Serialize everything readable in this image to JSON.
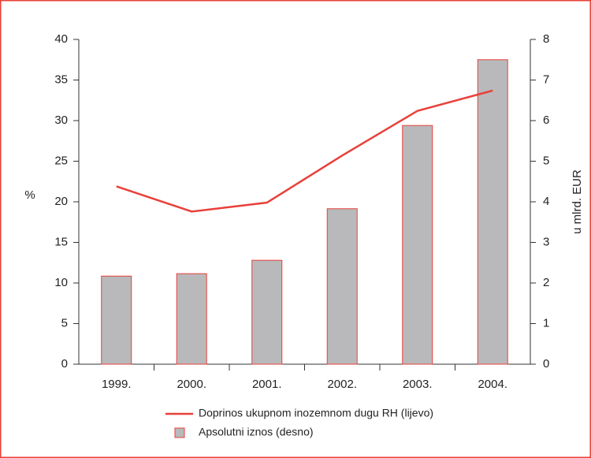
{
  "chart_data": {
    "type": "bar",
    "categories": [
      "1999.",
      "2000.",
      "2001.",
      "2002.",
      "2003.",
      "2004."
    ],
    "y_label": "%",
    "y2_label": "u mlrd. EUR",
    "ylim": [
      0,
      40
    ],
    "yticks": [
      0,
      5,
      10,
      15,
      20,
      25,
      30,
      35,
      40
    ],
    "y2lim": [
      0,
      8
    ],
    "y2ticks": [
      0,
      1,
      2,
      3,
      4,
      5,
      6,
      7,
      8
    ],
    "series": [
      {
        "name": "Doprinos ukupnom inozemnom dugu RH (lijevo)",
        "type": "line",
        "color": "#e8413a",
        "axis": "y",
        "values": [
          21.9,
          18.8,
          19.9,
          25.7,
          31.2,
          33.7
        ]
      },
      {
        "name": "Apsolutni iznos (desno)",
        "type": "bar",
        "color": "#b9b9bb",
        "axis": "y2",
        "values": [
          2.17,
          2.23,
          2.56,
          3.83,
          5.88,
          7.5
        ]
      }
    ]
  }
}
